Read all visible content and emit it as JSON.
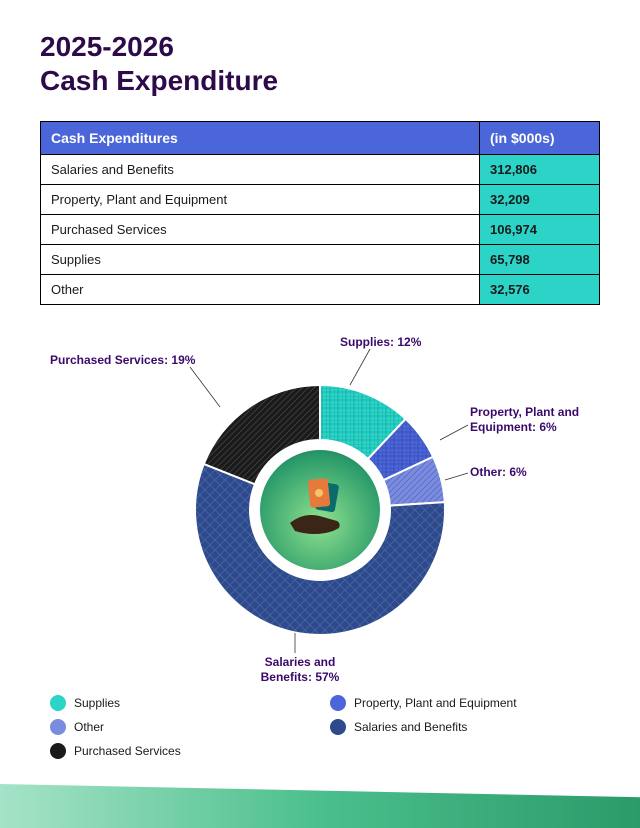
{
  "title_line1": "2025-2026",
  "title_line2": "Cash Expenditure",
  "table": {
    "header_left": "Cash Expenditures",
    "header_right": "(in $000s)",
    "header_bg": "#4b66d9",
    "value_bg": "#2bd4c7",
    "rows": [
      {
        "label": "Salaries and Benefits",
        "value": "312,806"
      },
      {
        "label": "Property, Plant and Equipment",
        "value": "32,209"
      },
      {
        "label": "Purchased Services",
        "value": "106,974"
      },
      {
        "label": "Supplies",
        "value": "65,798"
      },
      {
        "label": "Other",
        "value": "32,576"
      }
    ]
  },
  "donut": {
    "type": "donut",
    "inner_radius": 0.55,
    "outer_radius": 1.0,
    "slices": [
      {
        "name": "Supplies",
        "percent": 12,
        "color": "#2bd4c7",
        "pattern": "grid",
        "callout": "Supplies: 12%"
      },
      {
        "name": "Property, Plant and Equipment",
        "percent": 6,
        "color": "#4b66d9",
        "pattern": "grid-diag",
        "callout": "Property, Plant and Equipment: 6%"
      },
      {
        "name": "Other",
        "percent": 6,
        "color": "#7a8ce0",
        "pattern": "diag",
        "callout": "Other: 6%"
      },
      {
        "name": "Salaries and Benefits",
        "percent": 57,
        "color": "#2e4a8a",
        "pattern": "diamond",
        "callout": "Salaries and Benefits: 57%"
      },
      {
        "name": "Purchased Services",
        "percent": 19,
        "color": "#1a1a1a",
        "pattern": "dot-diag",
        "callout": "Purchased Services: 19%"
      }
    ],
    "label_color": "#3a0a6a",
    "label_fontsize": 12,
    "center_icon": "hand-with-cards"
  },
  "legend": [
    {
      "label": "Supplies",
      "color": "#2bd4c7"
    },
    {
      "label": "Property, Plant and Equipment",
      "color": "#4b66d9"
    },
    {
      "label": "Other",
      "color": "#7a8ce0"
    },
    {
      "label": "Salaries and Benefits",
      "color": "#2e4a8a"
    },
    {
      "label": "Purchased Services",
      "color": "#1a1a1a"
    }
  ],
  "footer_gradient": [
    "#a6e3c8",
    "#4bbf8d",
    "#2b9b6a"
  ]
}
